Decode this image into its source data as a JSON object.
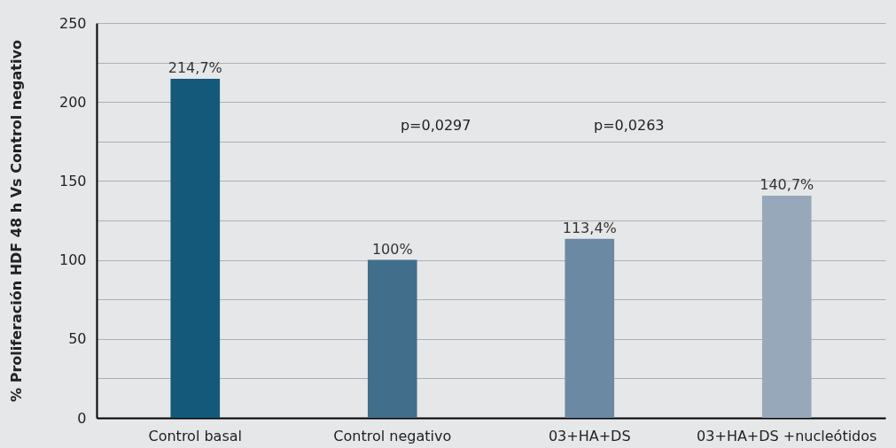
{
  "chart_data": {
    "type": "bar",
    "ylabel": "% Proliferación HDF 48 h Vs Control negativo",
    "categories": [
      "Control basal",
      "Control negativo",
      "03+HA+DS",
      "03+HA+DS +nucleótidos"
    ],
    "values": [
      214.7,
      100,
      113.4,
      140.7
    ],
    "colors": [
      "#15597a",
      "#416e8a",
      "#6b89a3",
      "#97a8bb"
    ],
    "value_labels": [
      "214,7%",
      "100%",
      "113,4%",
      "140,7%"
    ],
    "ylim": [
      0,
      250
    ],
    "yticks": [
      0,
      {
        "value": 25,
        "label": null
      },
      50,
      {
        "value": 75,
        "label": null
      },
      100,
      {
        "value": 125,
        "label": null
      },
      150,
      {
        "value": 175,
        "label": null
      },
      200,
      {
        "value": 225,
        "label": null
      },
      250
    ],
    "grid": "y",
    "annotations": [
      "p=0,0297",
      "p=0,0263"
    ]
  }
}
